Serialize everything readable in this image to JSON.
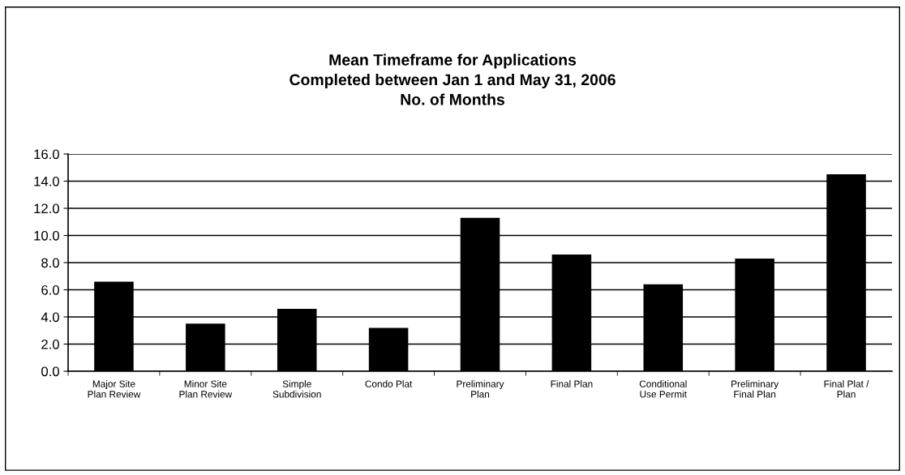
{
  "chart_data": {
    "type": "bar",
    "title": "Mean Timeframe for Applications\nCompleted between Jan 1 and May 31, 2006\nNo. of Months",
    "categories": [
      "Major Site\nPlan Review",
      "Minor Site\nPlan Review",
      "Simple\nSubdivision",
      "Condo Plat",
      "Preliminary\nPlan",
      "Final Plan",
      "Conditional\nUse Permit",
      "Preliminary\nFinal Plan",
      "Final Plat /\nPlan"
    ],
    "values": [
      6.6,
      3.5,
      4.6,
      3.2,
      11.3,
      8.6,
      6.4,
      8.3,
      14.5
    ],
    "color": "#000000",
    "ylim": [
      0,
      16
    ],
    "yticks": [
      {
        "value": 0,
        "label": "0.0"
      },
      {
        "value": 2,
        "label": "2.0"
      },
      {
        "value": 4,
        "label": "4.0"
      },
      {
        "value": 6,
        "label": "6.0"
      },
      {
        "value": 8,
        "label": "8.0"
      },
      {
        "value": 10,
        "label": "10.0"
      },
      {
        "value": 12,
        "label": "12.0"
      },
      {
        "value": 14,
        "label": "14.0"
      },
      {
        "value": 16,
        "label": "16.0"
      }
    ],
    "grid": "y"
  }
}
